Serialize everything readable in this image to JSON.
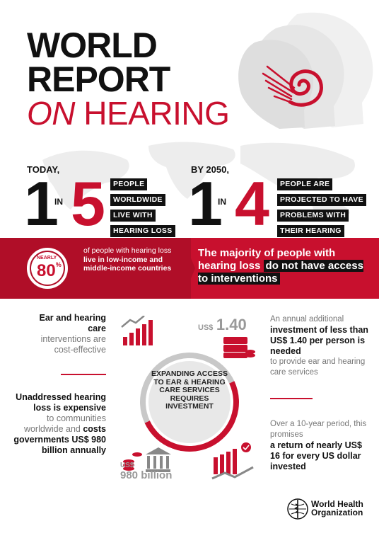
{
  "title": {
    "line1": "WORLD",
    "line2": "REPORT",
    "line3_italic": "ON",
    "line3_rest": " HEARING"
  },
  "today": {
    "lead": "TODAY,",
    "one": "1",
    "in": "IN",
    "five": "5",
    "tags": [
      "PEOPLE",
      "WORLDWIDE",
      "LIVE WITH",
      "HEARING LOSS"
    ]
  },
  "by2050": {
    "lead": "BY 2050,",
    "one": "1",
    "in": "IN",
    "four": "4",
    "tags": [
      "PEOPLE ARE",
      "PROJECTED TO HAVE",
      "PROBLEMS WITH",
      "THEIR HEARING"
    ]
  },
  "band": {
    "nearly": "NEARLY",
    "percent": "80",
    "percent_sign": "%",
    "text_plain": "of people with hearing loss ",
    "text_bold": "live in low-income and middle-income countries",
    "right_plain": "The majority of people with hearing loss ",
    "right_highlight": "do not have access to interventions"
  },
  "left_block1": {
    "bold": "Ear and hearing care",
    "grey": "interventions are cost-effective"
  },
  "left_block2": {
    "bold1": "Unaddressed hearing loss is expensive",
    "grey": "to communities worldwide and ",
    "bold2": "costs governments US$ 980 billion annually"
  },
  "left_amount": {
    "currency": "US$",
    "value": "980 billion"
  },
  "center": {
    "text": "EXPANDING ACCESS TO EAR & HEARING CARE SERVICES REQUIRES INVESTMENT"
  },
  "right_amount": {
    "currency": "US$",
    "value": "1.40"
  },
  "right_block1": {
    "grey1": "An annual additional",
    "bold": "investment of less than US$ 1.40 per person is needed",
    "grey2": "to provide ear and hearing care services"
  },
  "right_block2": {
    "grey": "Over a 10-year period, this promises",
    "bold": "a return of nearly US$ 16 for every US dollar invested"
  },
  "who": {
    "line1": "World Health",
    "line2": "Organization"
  },
  "colors": {
    "brand_red": "#c8102e",
    "dark": "#111111",
    "grey": "#777777"
  }
}
